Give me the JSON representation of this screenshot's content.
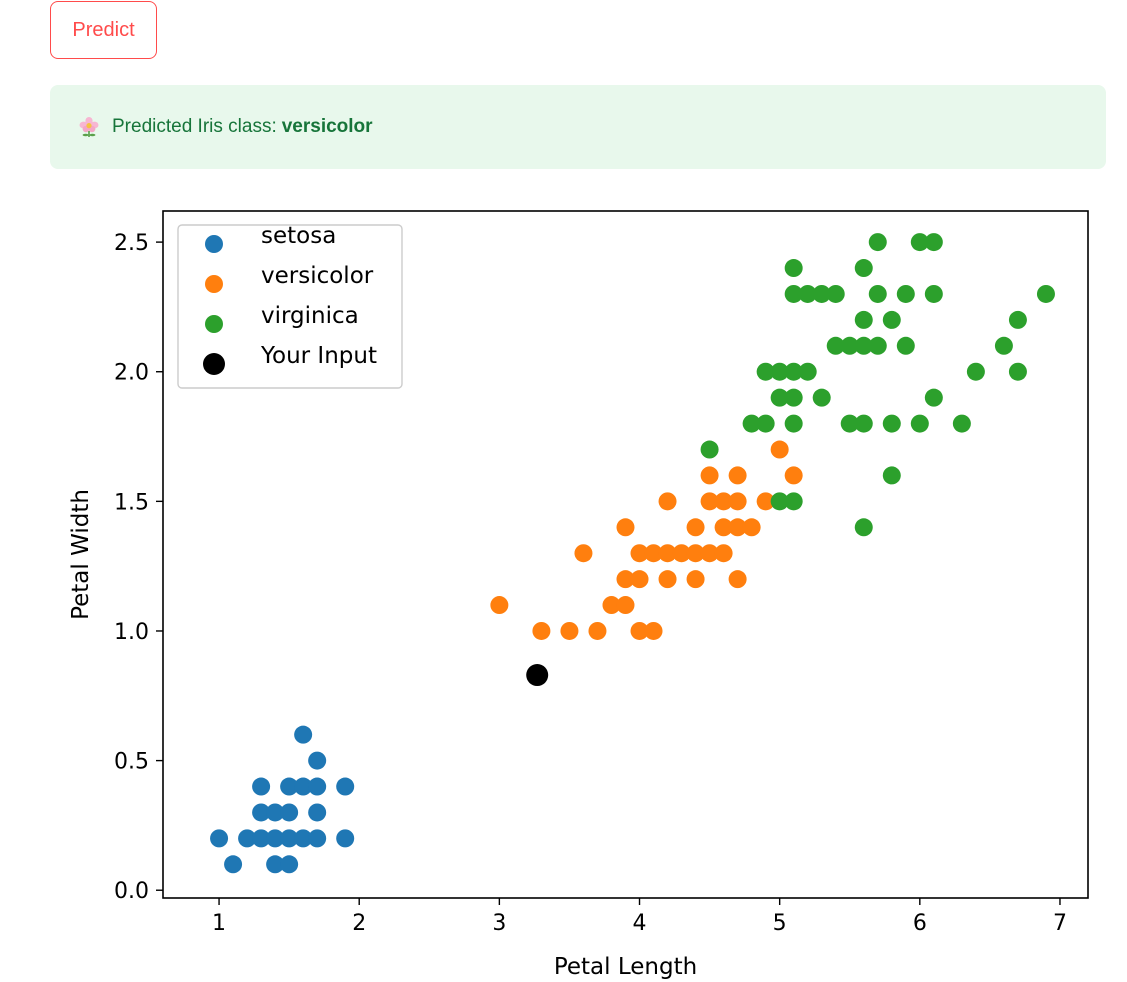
{
  "button": {
    "label": "Predict"
  },
  "alert": {
    "text": "Predicted Iris class:",
    "value": "versicolor",
    "icon": "flower-icon"
  },
  "colors": {
    "accent": "#ff4b4b",
    "alert_bg": "#e8f8ec",
    "alert_text": "#17753a"
  },
  "chart_data": {
    "type": "scatter",
    "xlabel": "Petal Length",
    "ylabel": "Petal Width",
    "xlim": [
      0.6,
      7.2
    ],
    "ylim": [
      -0.03,
      2.62
    ],
    "xticks": [
      1,
      2,
      3,
      4,
      5,
      6,
      7
    ],
    "yticks": [
      0.0,
      0.5,
      1.0,
      1.5,
      2.0,
      2.5
    ],
    "xtick_labels": [
      "1",
      "2",
      "3",
      "4",
      "5",
      "6",
      "7"
    ],
    "ytick_labels": [
      "0.0",
      "0.5",
      "1.0",
      "1.5",
      "2.0",
      "2.5"
    ],
    "legend_position": "upper left",
    "grid": false,
    "series": [
      {
        "name": "setosa",
        "color": "#1f77b4",
        "points": [
          [
            1.0,
            0.2
          ],
          [
            1.1,
            0.1
          ],
          [
            1.2,
            0.2
          ],
          [
            1.3,
            0.2
          ],
          [
            1.3,
            0.3
          ],
          [
            1.3,
            0.4
          ],
          [
            1.4,
            0.1
          ],
          [
            1.4,
            0.2
          ],
          [
            1.4,
            0.3
          ],
          [
            1.5,
            0.1
          ],
          [
            1.5,
            0.2
          ],
          [
            1.5,
            0.3
          ],
          [
            1.5,
            0.4
          ],
          [
            1.6,
            0.2
          ],
          [
            1.6,
            0.4
          ],
          [
            1.6,
            0.6
          ],
          [
            1.7,
            0.2
          ],
          [
            1.7,
            0.3
          ],
          [
            1.7,
            0.4
          ],
          [
            1.7,
            0.5
          ],
          [
            1.9,
            0.2
          ],
          [
            1.9,
            0.4
          ]
        ]
      },
      {
        "name": "versicolor",
        "color": "#ff7f0e",
        "points": [
          [
            3.0,
            1.1
          ],
          [
            3.3,
            1.0
          ],
          [
            3.5,
            1.0
          ],
          [
            3.6,
            1.3
          ],
          [
            3.7,
            1.0
          ],
          [
            3.8,
            1.1
          ],
          [
            3.9,
            1.1
          ],
          [
            3.9,
            1.2
          ],
          [
            3.9,
            1.4
          ],
          [
            4.0,
            1.0
          ],
          [
            4.0,
            1.2
          ],
          [
            4.0,
            1.3
          ],
          [
            4.1,
            1.0
          ],
          [
            4.1,
            1.3
          ],
          [
            4.2,
            1.2
          ],
          [
            4.2,
            1.3
          ],
          [
            4.2,
            1.5
          ],
          [
            4.3,
            1.3
          ],
          [
            4.4,
            1.2
          ],
          [
            4.4,
            1.3
          ],
          [
            4.4,
            1.4
          ],
          [
            4.5,
            1.3
          ],
          [
            4.5,
            1.5
          ],
          [
            4.5,
            1.6
          ],
          [
            4.6,
            1.3
          ],
          [
            4.6,
            1.4
          ],
          [
            4.6,
            1.5
          ],
          [
            4.7,
            1.2
          ],
          [
            4.7,
            1.4
          ],
          [
            4.7,
            1.5
          ],
          [
            4.7,
            1.6
          ],
          [
            4.8,
            1.4
          ],
          [
            4.9,
            1.5
          ],
          [
            5.0,
            1.7
          ],
          [
            5.1,
            1.6
          ]
        ]
      },
      {
        "name": "virginica",
        "color": "#2ca02c",
        "points": [
          [
            4.5,
            1.7
          ],
          [
            4.8,
            1.8
          ],
          [
            4.9,
            1.8
          ],
          [
            4.9,
            2.0
          ],
          [
            5.0,
            1.5
          ],
          [
            5.0,
            1.9
          ],
          [
            5.0,
            2.0
          ],
          [
            5.1,
            1.5
          ],
          [
            5.1,
            1.8
          ],
          [
            5.1,
            1.9
          ],
          [
            5.1,
            2.0
          ],
          [
            5.1,
            2.3
          ],
          [
            5.1,
            2.4
          ],
          [
            5.2,
            2.0
          ],
          [
            5.2,
            2.3
          ],
          [
            5.3,
            1.9
          ],
          [
            5.3,
            2.3
          ],
          [
            5.4,
            2.3
          ],
          [
            5.4,
            2.1
          ],
          [
            5.5,
            1.8
          ],
          [
            5.5,
            2.1
          ],
          [
            5.6,
            1.4
          ],
          [
            5.6,
            1.8
          ],
          [
            5.6,
            2.1
          ],
          [
            5.6,
            2.2
          ],
          [
            5.6,
            2.4
          ],
          [
            5.7,
            2.1
          ],
          [
            5.7,
            2.3
          ],
          [
            5.7,
            2.5
          ],
          [
            5.8,
            1.6
          ],
          [
            5.8,
            1.8
          ],
          [
            5.8,
            2.2
          ],
          [
            5.9,
            2.1
          ],
          [
            5.9,
            2.3
          ],
          [
            6.0,
            1.8
          ],
          [
            6.0,
            2.5
          ],
          [
            6.1,
            1.9
          ],
          [
            6.1,
            2.3
          ],
          [
            6.1,
            2.5
          ],
          [
            6.3,
            1.8
          ],
          [
            6.4,
            2.0
          ],
          [
            6.6,
            2.1
          ],
          [
            6.7,
            2.0
          ],
          [
            6.7,
            2.2
          ],
          [
            6.9,
            2.3
          ]
        ]
      },
      {
        "name": "Your Input",
        "color": "#000000",
        "points": [
          [
            3.27,
            0.83
          ]
        ]
      }
    ]
  }
}
